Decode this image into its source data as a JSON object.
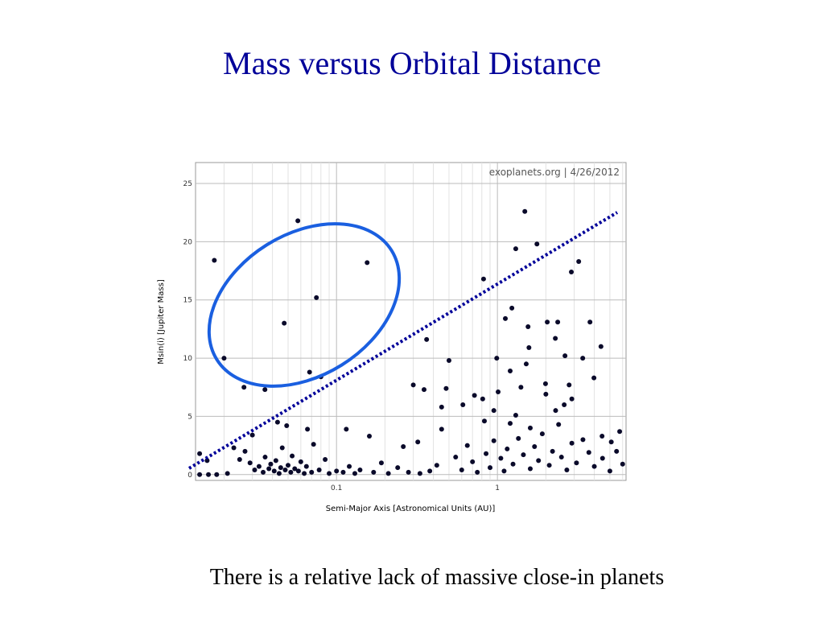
{
  "title": "Mass versus Orbital Distance",
  "caption": "There is a relative lack of massive close-in planets",
  "chart_data": {
    "type": "scatter",
    "watermark": "exoplanets.org | 4/26/2012",
    "x_label": "Semi-Major Axis [Astronomical Units (AU)]",
    "y_label": "Msin(i) [Jupiter Mass]",
    "x_scale": "log",
    "xlim": [
      0.0133,
      6.3
    ],
    "ylim": [
      -0.5,
      26.8
    ],
    "xticks": [
      0.1,
      1
    ],
    "x_minor_grid": [
      0.02,
      0.03,
      0.04,
      0.05,
      0.06,
      0.07,
      0.08,
      0.09,
      0.2,
      0.3,
      0.4,
      0.5,
      0.6,
      0.7,
      0.8,
      0.9,
      2,
      3,
      4,
      5,
      6
    ],
    "yticks": [
      0,
      5,
      10,
      15,
      20,
      25
    ],
    "grid": true,
    "color": "#0a0a2a",
    "x": [
      0.0174,
      0.02,
      0.0575,
      0.0473,
      0.075,
      0.155,
      0.068,
      0.08,
      0.0359,
      0.0266,
      1.48,
      1.3,
      1.76,
      3.2,
      2.88,
      0.82,
      1.23,
      1.12,
      1.55,
      3.76,
      2.04,
      2.37,
      4.4,
      0.363,
      2.29,
      1.57,
      0.99,
      1.51,
      2.63,
      0.5,
      1.2,
      3.39,
      3.98,
      0.3,
      0.35,
      0.48,
      0.72,
      0.81,
      1.01,
      1.4,
      1.99,
      2.79,
      2.0,
      2.9,
      0.45,
      0.61,
      0.83,
      5.75,
      4.47,
      5.1,
      0.115,
      0.16,
      0.26,
      0.32,
      0.45,
      0.043,
      0.049,
      0.066,
      0.03,
      0.023,
      0.0141,
      0.0157,
      0.0141,
      0.016,
      0.018,
      0.021,
      0.025,
      0.027,
      0.029,
      0.031,
      0.033,
      0.035,
      0.036,
      0.038,
      0.039,
      0.041,
      0.042,
      0.044,
      0.045,
      0.046,
      0.048,
      0.05,
      0.052,
      0.053,
      0.055,
      0.058,
      0.06,
      0.063,
      0.065,
      0.07,
      0.072,
      0.078,
      0.085,
      0.09,
      0.1,
      0.11,
      0.12,
      0.13,
      0.14,
      0.17,
      0.19,
      0.21,
      0.24,
      0.28,
      0.33,
      0.38,
      0.42,
      0.55,
      0.6,
      0.65,
      0.7,
      0.75,
      0.85,
      0.9,
      0.95,
      1.05,
      1.1,
      1.15,
      1.25,
      1.35,
      1.45,
      1.6,
      1.7,
      1.8,
      1.9,
      2.1,
      2.2,
      2.4,
      2.5,
      2.7,
      2.9,
      3.1,
      3.4,
      3.7,
      4.0,
      4.5,
      5.0,
      5.5,
      6.0,
      1.3,
      1.6,
      2.3,
      2.6,
      1.2,
      0.95
    ],
    "values": [
      18.4,
      10.0,
      21.8,
      13.0,
      15.2,
      18.2,
      8.8,
      8.4,
      7.3,
      7.5,
      22.6,
      19.4,
      19.8,
      18.3,
      17.4,
      16.8,
      14.3,
      13.4,
      12.7,
      13.1,
      13.1,
      13.1,
      11.0,
      11.6,
      11.7,
      10.9,
      10.0,
      9.5,
      10.2,
      9.8,
      8.9,
      10.0,
      8.3,
      7.7,
      7.3,
      7.4,
      6.8,
      6.5,
      7.1,
      7.5,
      7.8,
      7.7,
      6.9,
      6.5,
      5.8,
      6.0,
      4.6,
      3.7,
      3.3,
      2.8,
      3.9,
      3.3,
      2.4,
      2.8,
      3.9,
      4.5,
      4.2,
      3.9,
      3.4,
      2.3,
      1.8,
      1.2,
      0.0,
      0.0,
      0.0,
      0.1,
      1.3,
      2.0,
      1.0,
      0.4,
      0.7,
      0.2,
      1.5,
      0.5,
      0.9,
      0.3,
      1.2,
      0.1,
      0.6,
      2.3,
      0.4,
      0.8,
      0.2,
      1.6,
      0.5,
      0.3,
      1.1,
      0.1,
      0.7,
      0.2,
      2.6,
      0.4,
      1.3,
      0.1,
      0.3,
      0.2,
      0.7,
      0.1,
      0.4,
      0.2,
      1.0,
      0.1,
      0.6,
      0.2,
      0.1,
      0.3,
      0.8,
      1.5,
      0.4,
      2.5,
      1.1,
      0.2,
      1.8,
      0.6,
      2.9,
      1.4,
      0.3,
      2.2,
      0.9,
      3.1,
      1.7,
      0.5,
      2.4,
      1.2,
      3.5,
      0.8,
      2.0,
      4.3,
      1.5,
      0.4,
      2.7,
      1.0,
      3.0,
      1.9,
      0.7,
      1.4,
      0.3,
      2.0,
      0.9,
      5.1,
      4.0,
      5.5,
      6.0,
      4.4,
      5.5
    ]
  }
}
